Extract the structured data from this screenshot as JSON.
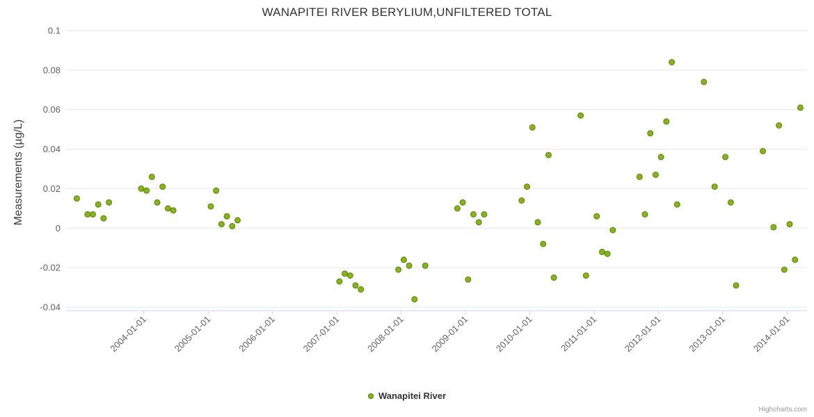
{
  "credits": "Highcharts.com",
  "chart_data": {
    "type": "scatter",
    "title": "WANAPITEI RIVER BERYLIUM,UNFILTERED TOTAL",
    "xlabel": "",
    "ylabel": "Measurements (µg/L)",
    "ylim": [
      -0.04,
      0.1
    ],
    "yticks": [
      0.1,
      0.08,
      0.06,
      0.04,
      0.02,
      0,
      -0.02,
      -0.04
    ],
    "ytick_labels": [
      "0.1",
      "0.08",
      "0.06",
      "0.04",
      "0.02",
      "0",
      "-0.02",
      "-0.04"
    ],
    "xticks_years": [
      2004,
      2005,
      2006,
      2007,
      2008,
      2009,
      2010,
      2011,
      2012,
      2013,
      2014
    ],
    "xtick_labels": [
      "2004-01-01",
      "2005-01-01",
      "2006-01-01",
      "2007-01-01",
      "2008-01-01",
      "2009-01-01",
      "2010-01-01",
      "2011-01-01",
      "2012-01-01",
      "2013-01-01",
      "2014-01-01"
    ],
    "xlim_years": [
      2002.79,
      2014.31
    ],
    "grid": "horizontal",
    "grid_color": "#e6e6e6",
    "axis_line_color": "#ccd6eb",
    "tick_label_color": "#606060",
    "legend_position": "bottom-center",
    "series": [
      {
        "name": "Wanapitei River",
        "color": "#86b31e",
        "marker_stroke": "#5d7f12",
        "marker_radius": 4,
        "points": [
          {
            "date": "2002-12",
            "value": 0.015
          },
          {
            "date": "2003-02",
            "value": 0.007
          },
          {
            "date": "2003-03",
            "value": 0.007
          },
          {
            "date": "2003-04",
            "value": 0.012
          },
          {
            "date": "2003-05",
            "value": 0.005
          },
          {
            "date": "2003-06",
            "value": 0.013
          },
          {
            "date": "2003-12",
            "value": 0.02
          },
          {
            "date": "2004-01",
            "value": 0.019
          },
          {
            "date": "2004-02",
            "value": 0.026
          },
          {
            "date": "2004-03",
            "value": 0.013
          },
          {
            "date": "2004-04",
            "value": 0.021
          },
          {
            "date": "2004-05",
            "value": 0.01
          },
          {
            "date": "2004-06",
            "value": 0.009
          },
          {
            "date": "2005-01",
            "value": 0.011
          },
          {
            "date": "2005-02",
            "value": 0.019
          },
          {
            "date": "2005-03",
            "value": 0.002
          },
          {
            "date": "2005-04",
            "value": 0.006
          },
          {
            "date": "2005-05",
            "value": 0.001
          },
          {
            "date": "2005-06",
            "value": 0.004
          },
          {
            "date": "2007-01",
            "value": -0.027
          },
          {
            "date": "2007-02",
            "value": -0.023
          },
          {
            "date": "2007-03",
            "value": -0.024
          },
          {
            "date": "2007-04",
            "value": -0.029
          },
          {
            "date": "2007-05",
            "value": -0.031
          },
          {
            "date": "2007-12",
            "value": -0.021
          },
          {
            "date": "2008-01",
            "value": -0.016
          },
          {
            "date": "2008-02",
            "value": -0.019
          },
          {
            "date": "2008-03",
            "value": -0.036
          },
          {
            "date": "2008-05",
            "value": -0.019
          },
          {
            "date": "2008-11",
            "value": 0.01
          },
          {
            "date": "2008-12",
            "value": 0.013
          },
          {
            "date": "2009-01",
            "value": -0.026
          },
          {
            "date": "2009-02",
            "value": 0.007
          },
          {
            "date": "2009-03",
            "value": 0.003
          },
          {
            "date": "2009-04",
            "value": 0.007
          },
          {
            "date": "2009-11",
            "value": 0.014
          },
          {
            "date": "2009-12",
            "value": 0.021
          },
          {
            "date": "2010-01",
            "value": 0.051
          },
          {
            "date": "2010-02",
            "value": 0.003
          },
          {
            "date": "2010-03",
            "value": -0.008
          },
          {
            "date": "2010-04",
            "value": 0.037
          },
          {
            "date": "2010-05",
            "value": -0.025
          },
          {
            "date": "2010-10",
            "value": 0.057
          },
          {
            "date": "2010-11",
            "value": -0.024
          },
          {
            "date": "2011-01",
            "value": 0.006
          },
          {
            "date": "2011-02",
            "value": -0.012
          },
          {
            "date": "2011-03",
            "value": -0.013
          },
          {
            "date": "2011-04",
            "value": -0.001
          },
          {
            "date": "2011-09",
            "value": 0.026
          },
          {
            "date": "2011-10",
            "value": 0.007
          },
          {
            "date": "2011-11",
            "value": 0.048
          },
          {
            "date": "2011-12",
            "value": 0.027
          },
          {
            "date": "2012-01",
            "value": 0.036
          },
          {
            "date": "2012-02",
            "value": 0.054
          },
          {
            "date": "2012-03",
            "value": 0.084
          },
          {
            "date": "2012-04",
            "value": 0.012
          },
          {
            "date": "2012-09",
            "value": 0.074
          },
          {
            "date": "2012-11",
            "value": 0.021
          },
          {
            "date": "2013-01",
            "value": 0.036
          },
          {
            "date": "2013-02",
            "value": 0.013
          },
          {
            "date": "2013-03",
            "value": -0.029
          },
          {
            "date": "2013-08",
            "value": 0.039
          },
          {
            "date": "2013-10",
            "value": 0.0005
          },
          {
            "date": "2013-11",
            "value": 0.052
          },
          {
            "date": "2013-12",
            "value": -0.021
          },
          {
            "date": "2014-01",
            "value": 0.002
          },
          {
            "date": "2014-02",
            "value": -0.016
          },
          {
            "date": "2014-03",
            "value": 0.061
          }
        ]
      }
    ]
  }
}
